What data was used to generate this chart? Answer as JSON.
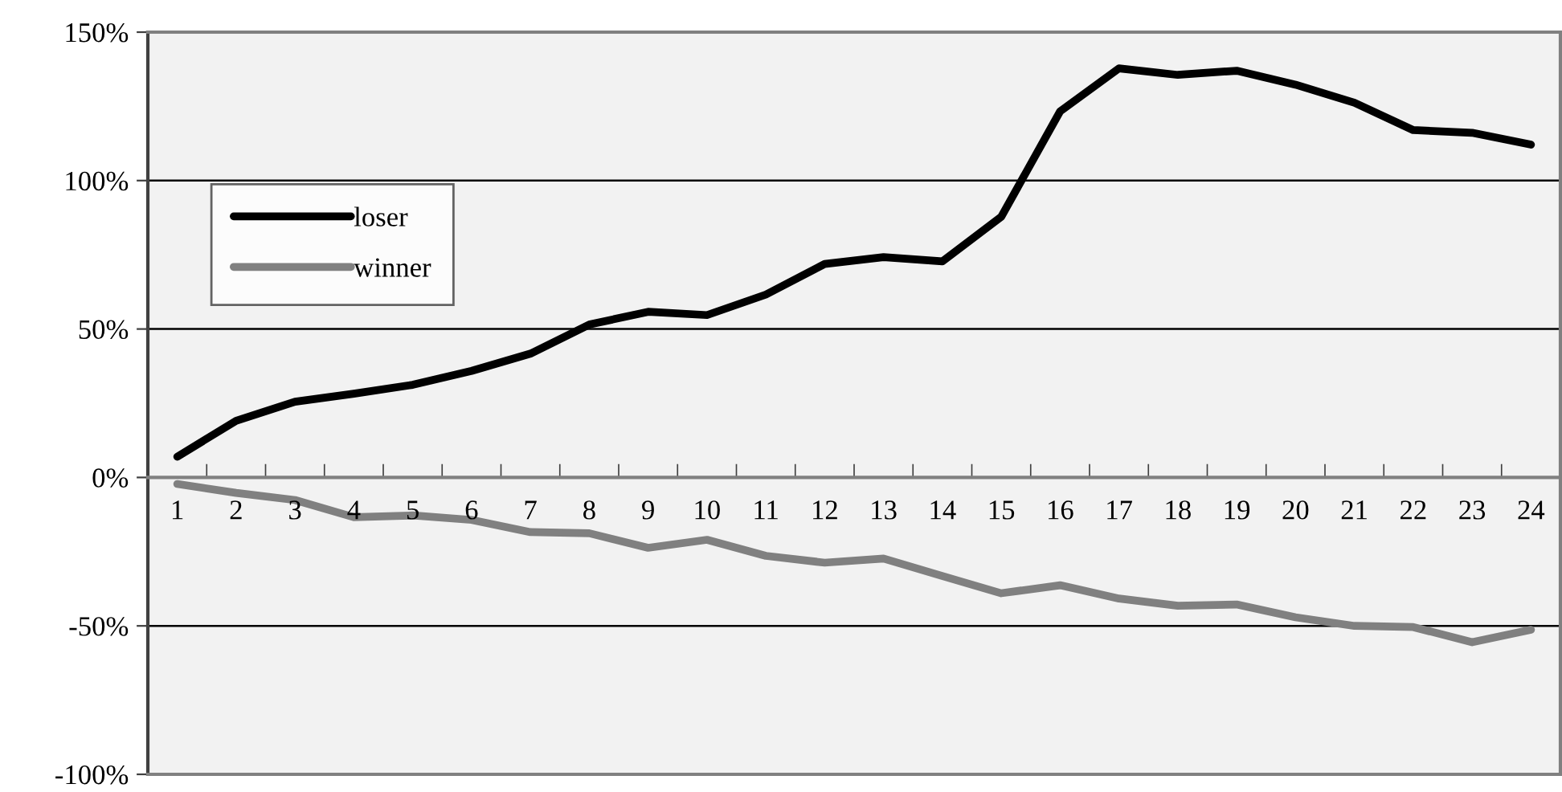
{
  "chart_data": {
    "type": "line",
    "categories": [
      "1",
      "2",
      "3",
      "4",
      "5",
      "6",
      "7",
      "8",
      "9",
      "10",
      "11",
      "12",
      "13",
      "14",
      "15",
      "16",
      "17",
      "18",
      "19",
      "20",
      "21",
      "22",
      "23",
      "24"
    ],
    "series": [
      {
        "name": "loser",
        "color": "#000000",
        "values": [
          7.0,
          19.1,
          25.5,
          28.2,
          31.2,
          35.9,
          41.7,
          51.5,
          55.8,
          54.7,
          61.6,
          71.9,
          74.2,
          72.8,
          87.8,
          123.3,
          137.8,
          135.6,
          137.0,
          132.3,
          126.2,
          117.0,
          116.1,
          112.1
        ]
      },
      {
        "name": "winner",
        "color": "#808080",
        "values": [
          -2.2,
          -5.2,
          -7.6,
          -13.4,
          -12.8,
          -14.3,
          -18.4,
          -18.8,
          -23.7,
          -21.0,
          -26.4,
          -28.7,
          -27.3,
          -33.2,
          -39.0,
          -36.3,
          -40.8,
          -43.2,
          -42.8,
          -47.1,
          -50.0,
          -50.4,
          -55.5,
          -51.3
        ]
      }
    ],
    "ylim": [
      -100,
      150
    ],
    "yticks": [
      {
        "value": -100,
        "label": "-100%"
      },
      {
        "value": -50,
        "label": "-50%"
      },
      {
        "value": 0,
        "label": "0%"
      },
      {
        "value": 50,
        "label": "50%"
      },
      {
        "value": 100,
        "label": "100%"
      },
      {
        "value": 150,
        "label": "150%"
      }
    ],
    "grid": "y",
    "legend": "top left",
    "marker": "none",
    "line_style": "solid"
  }
}
